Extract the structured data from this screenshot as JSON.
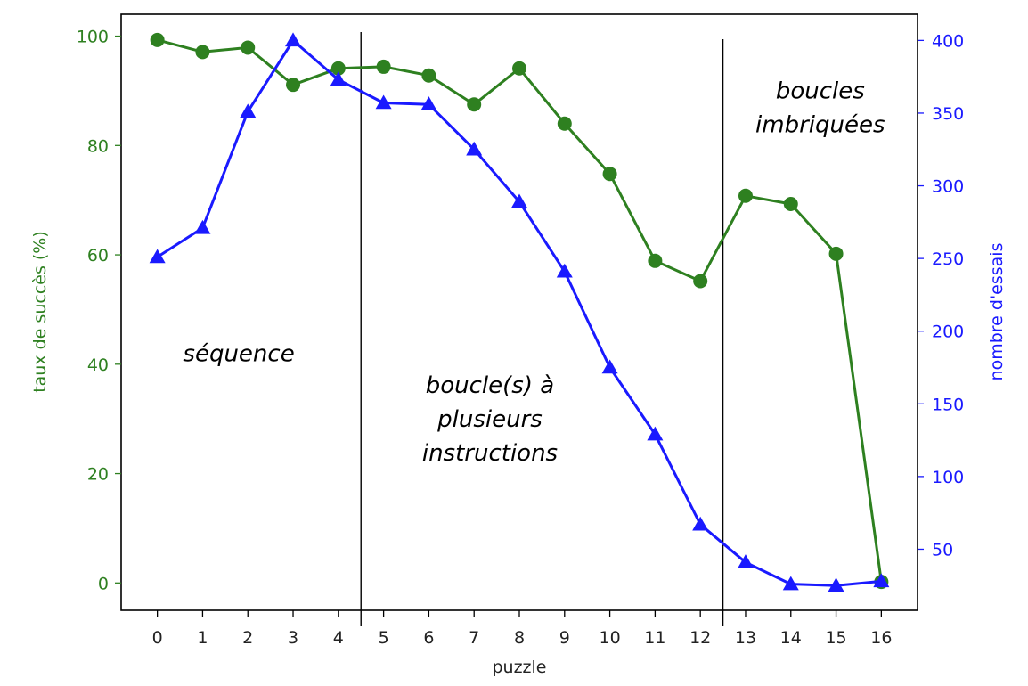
{
  "chart_data": {
    "type": "line",
    "xlabel": "puzzle",
    "x": [
      0,
      1,
      2,
      3,
      4,
      5,
      6,
      7,
      8,
      9,
      10,
      11,
      12,
      13,
      14,
      15,
      16
    ],
    "xlim": [
      -0.8,
      16.8
    ],
    "y_left": {
      "label": "taux de succès (%)",
      "color": "#2e8020",
      "ylim": [
        -5,
        104
      ],
      "ticks": [
        0,
        20,
        40,
        60,
        80,
        100
      ]
    },
    "y_right": {
      "label": "nombre d'essais",
      "color": "#1a1aff",
      "ylim": [
        8,
        418
      ],
      "ticks": [
        50,
        100,
        150,
        200,
        250,
        300,
        350,
        400
      ]
    },
    "series": [
      {
        "axis": "left",
        "color": "#2e8020",
        "marker": "circle",
        "values": [
          99.3,
          97.1,
          97.9,
          91.1,
          94.1,
          94.4,
          92.8,
          87.5,
          94.1,
          84.0,
          74.8,
          58.9,
          55.2,
          70.8,
          69.3,
          60.2,
          0.2
        ]
      },
      {
        "axis": "right",
        "color": "#1a1aff",
        "marker": "triangle",
        "values": [
          251,
          271,
          351,
          400,
          373,
          357,
          356,
          325,
          289,
          241,
          175,
          129,
          67,
          41,
          26,
          25,
          28
        ]
      }
    ],
    "vlines": [
      4.5,
      12.5
    ],
    "annotations": [
      {
        "lines": [
          "séquence"
        ],
        "x": 1.8,
        "y": 42
      },
      {
        "lines": [
          "boucle(s) à",
          "plusieurs",
          "instructions"
        ],
        "x": 7.35,
        "y": 30
      },
      {
        "lines": [
          "boucles",
          "imbriquées"
        ],
        "x": 14.65,
        "y": 87
      }
    ]
  }
}
